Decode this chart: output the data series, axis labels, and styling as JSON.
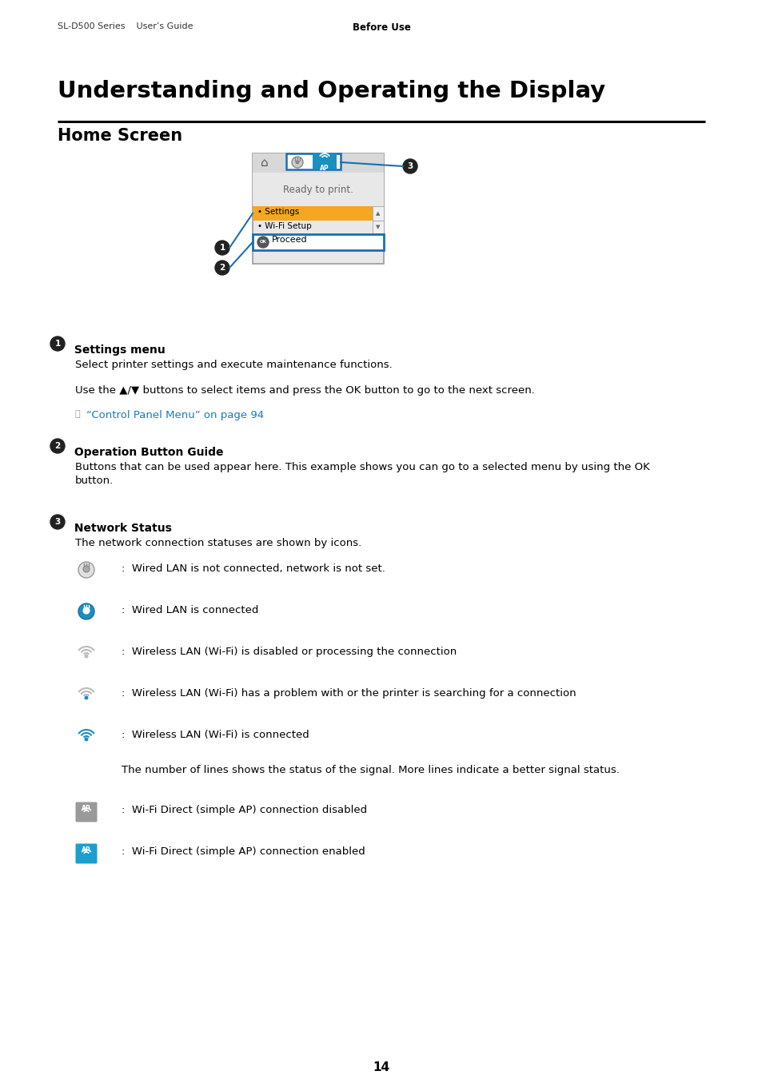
{
  "header_left": "SL-D500 Series    User’s Guide",
  "header_center": "Before Use",
  "main_title": "Understanding and Operating the Display",
  "section_title": "Home Screen",
  "page_number": "14",
  "bg_color": "#ffffff",
  "text_color": "#000000",
  "blue_color": "#1a6faf",
  "link_color": "#1a7abd",
  "section1_title": "Settings menu",
  "section1_body1": "Select printer settings and execute maintenance functions.",
  "section1_body2": "Use the ▲/▼ buttons to select items and press the OK button to go to the next screen.",
  "section1_link": "“Control Panel Menu” on page 94",
  "section2_title": "Operation Button Guide",
  "section2_body1": "Buttons that can be used appear here. This example shows you can go to a selected menu by using the OK",
  "section2_body2": "button.",
  "section3_title": "Network Status",
  "section3_body": "The network connection statuses are shown by icons.",
  "icon_items": [
    {
      "label": "Wired LAN is not connected, network is not set.",
      "icon_type": "lan_gray"
    },
    {
      "label": "Wired LAN is connected",
      "icon_type": "lan_blue"
    },
    {
      "label": "Wireless LAN (Wi-Fi) is disabled or processing the connection",
      "icon_type": "wifi_gray"
    },
    {
      "label": "Wireless LAN (Wi-Fi) has a problem with or the printer is searching for a connection",
      "icon_type": "wifi_partial"
    },
    {
      "label": "Wireless LAN (Wi-Fi) is connected",
      "icon_type": "wifi_full"
    },
    {
      "label": "The number of lines shows the status of the signal. More lines indicate a better signal status.",
      "icon_type": "none"
    },
    {
      "label": "Wi-Fi Direct (simple AP) connection disabled",
      "icon_type": "wifidirect_gray"
    },
    {
      "label": "Wi-Fi Direct (simple AP) connection enabled",
      "icon_type": "wifidirect_blue"
    }
  ]
}
